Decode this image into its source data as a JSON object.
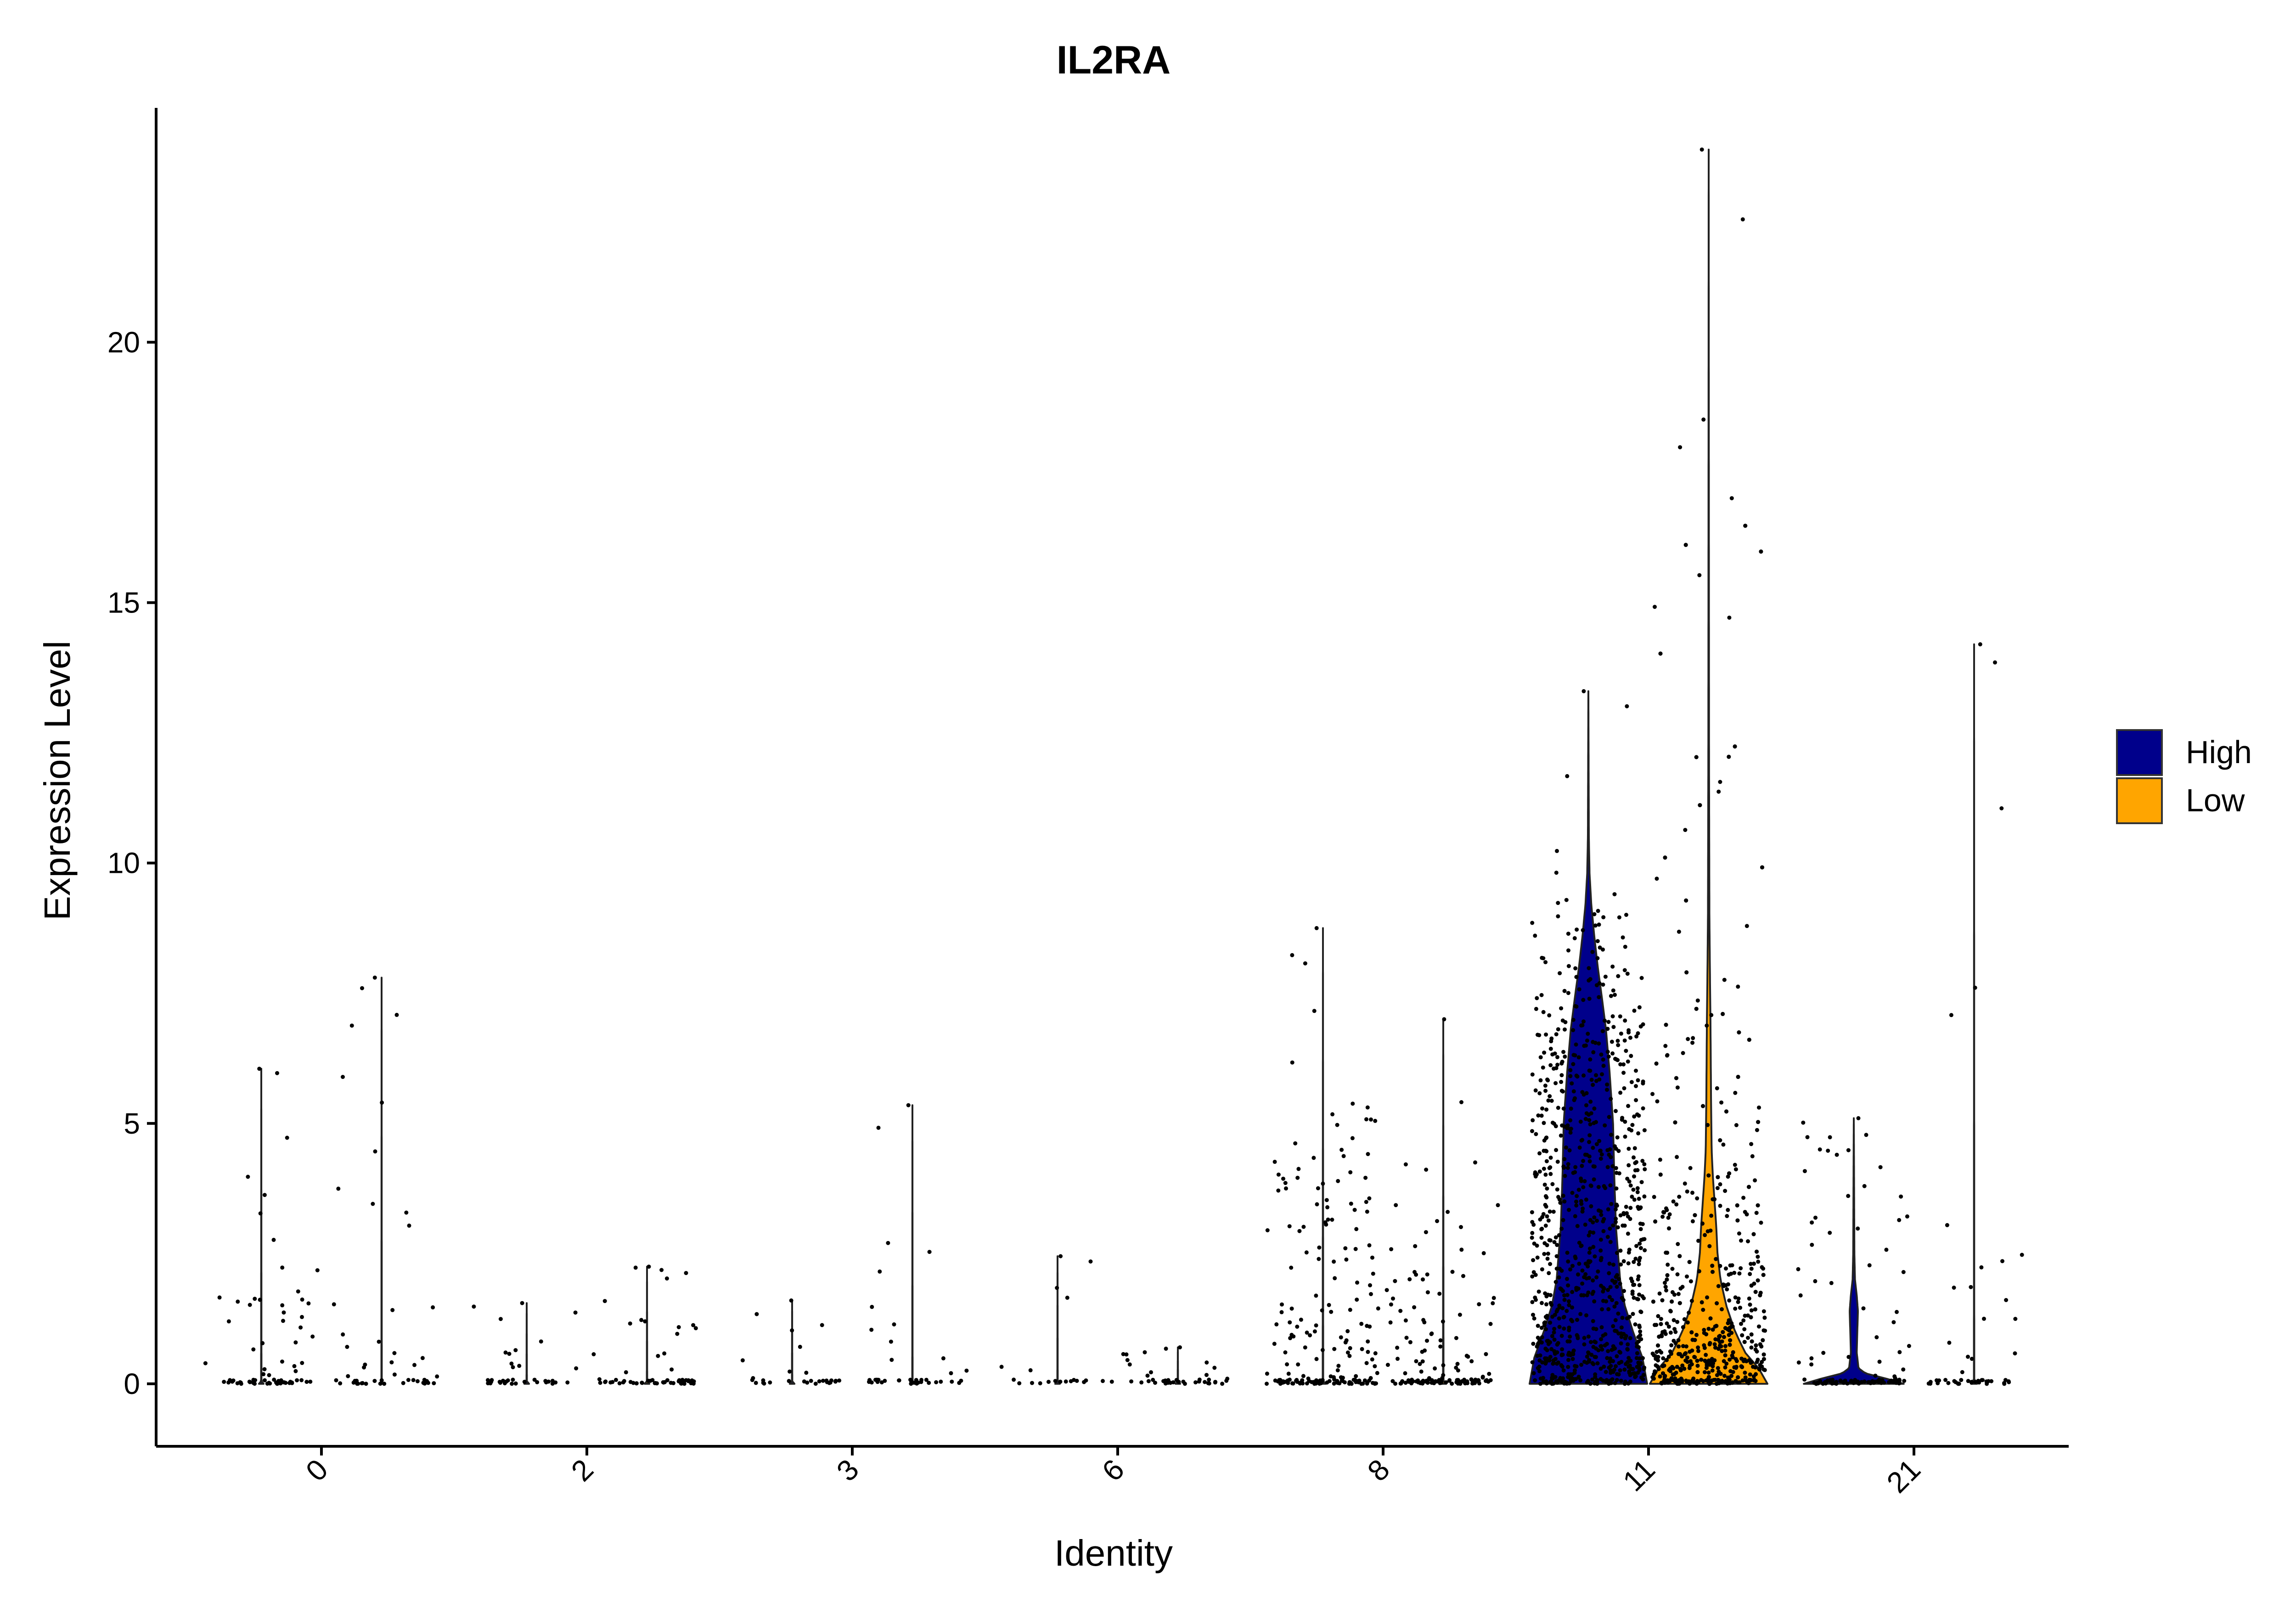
{
  "chart_data": {
    "type": "violin",
    "title": "IL2RA",
    "xlabel": "Identity",
    "ylabel": "Expression Level",
    "ylim": [
      -1.2,
      24.5
    ],
    "yticks": [
      0,
      5,
      10,
      15,
      20
    ],
    "categories": [
      "0",
      "2",
      "3",
      "6",
      "8",
      "11",
      "21"
    ],
    "legend": {
      "position": "right",
      "entries": [
        {
          "name": "High",
          "color": "#00008B"
        },
        {
          "name": "Low",
          "color": "#FFA500"
        }
      ]
    },
    "grid": false,
    "series": [
      {
        "name": "High",
        "color": "#00008B",
        "groups": [
          {
            "identity": "0",
            "max": 6.05,
            "n_points": 70,
            "nonzero_frac": 0.5,
            "typical_max": 3.3,
            "width_profile": [
              [
                0,
                0.04
              ],
              [
                0.05,
                0.003
              ],
              [
                6.05,
                0.0
              ]
            ]
          },
          {
            "identity": "2",
            "max": 1.55,
            "n_points": 35,
            "nonzero_frac": 0.35,
            "typical_max": 1.55,
            "width_profile": [
              [
                0,
                0.04
              ],
              [
                0.05,
                0.003
              ],
              [
                1.55,
                0.0
              ]
            ]
          },
          {
            "identity": "3",
            "max": 1.6,
            "n_points": 30,
            "nonzero_frac": 0.35,
            "typical_max": 1.6,
            "width_profile": [
              [
                0,
                0.04
              ],
              [
                0.05,
                0.003
              ],
              [
                1.6,
                0.0
              ]
            ]
          },
          {
            "identity": "6",
            "max": 2.45,
            "n_points": 20,
            "nonzero_frac": 0.35,
            "typical_max": 2.45,
            "width_profile": [
              [
                0,
                0.04
              ],
              [
                0.05,
                0.003
              ],
              [
                2.45,
                0.0
              ]
            ]
          },
          {
            "identity": "8",
            "max": 8.75,
            "n_points": 190,
            "nonzero_frac": 0.7,
            "typical_max": 5.4,
            "width_profile": [
              [
                0,
                0.05
              ],
              [
                0.05,
                0.004
              ],
              [
                8.75,
                0.0
              ]
            ]
          },
          {
            "identity": "11",
            "max": 13.3,
            "n_points": 900,
            "nonzero_frac": 0.95,
            "typical_max": 9.5,
            "width_profile": [
              [
                0,
                1.0
              ],
              [
                0.5,
                0.92
              ],
              [
                1.0,
                0.76
              ],
              [
                1.5,
                0.62
              ],
              [
                2.0,
                0.54
              ],
              [
                3.0,
                0.47
              ],
              [
                4.0,
                0.44
              ],
              [
                5.0,
                0.42
              ],
              [
                6.0,
                0.36
              ],
              [
                6.8,
                0.3
              ],
              [
                7.5,
                0.22
              ],
              [
                8.0,
                0.16
              ],
              [
                8.6,
                0.1
              ],
              [
                9.2,
                0.05
              ],
              [
                9.8,
                0.02
              ],
              [
                10.5,
                0.008
              ],
              [
                13.3,
                0.0
              ]
            ]
          },
          {
            "identity": "21",
            "max": 5.1,
            "n_points": 110,
            "nonzero_frac": 0.5,
            "typical_max": 5.1,
            "width_profile": [
              [
                0,
                0.85
              ],
              [
                0.1,
                0.55
              ],
              [
                0.2,
                0.2
              ],
              [
                0.3,
                0.08
              ],
              [
                0.6,
                0.05
              ],
              [
                1.0,
                0.06
              ],
              [
                1.4,
                0.07
              ],
              [
                1.7,
                0.05
              ],
              [
                2.0,
                0.02
              ],
              [
                2.5,
                0.01
              ],
              [
                5.1,
                0.0
              ]
            ]
          }
        ]
      },
      {
        "name": "Low",
        "color": "#FFA500",
        "groups": [
          {
            "identity": "0",
            "max": 7.8,
            "n_points": 45,
            "nonzero_frac": 0.5,
            "typical_max": 4.8,
            "width_profile": [
              [
                0,
                0.04
              ],
              [
                0.05,
                0.003
              ],
              [
                7.8,
                0.0
              ]
            ]
          },
          {
            "identity": "2",
            "max": 2.25,
            "n_points": 60,
            "nonzero_frac": 0.4,
            "typical_max": 2.25,
            "width_profile": [
              [
                0,
                0.04
              ],
              [
                0.05,
                0.003
              ],
              [
                2.25,
                0.0
              ]
            ]
          },
          {
            "identity": "3",
            "max": 5.35,
            "n_points": 35,
            "nonzero_frac": 0.3,
            "typical_max": 1.6,
            "width_profile": [
              [
                0,
                0.04
              ],
              [
                0.05,
                0.003
              ],
              [
                5.35,
                0.0
              ]
            ]
          },
          {
            "identity": "6",
            "max": 0.7,
            "n_points": 40,
            "nonzero_frac": 0.4,
            "typical_max": 0.7,
            "width_profile": [
              [
                0,
                0.04
              ],
              [
                0.05,
                0.003
              ],
              [
                0.7,
                0.0
              ]
            ]
          },
          {
            "identity": "8",
            "max": 7.0,
            "n_points": 140,
            "nonzero_frac": 0.6,
            "typical_max": 3.5,
            "width_profile": [
              [
                0,
                0.05
              ],
              [
                0.05,
                0.004
              ],
              [
                7.0,
                0.0
              ]
            ]
          },
          {
            "identity": "11",
            "max": 23.7,
            "n_points": 650,
            "nonzero_frac": 0.9,
            "typical_max": 16.7,
            "width_profile": [
              [
                0,
                1.0
              ],
              [
                0.3,
                0.85
              ],
              [
                0.6,
                0.62
              ],
              [
                1.0,
                0.45
              ],
              [
                1.5,
                0.3
              ],
              [
                2.0,
                0.2
              ],
              [
                2.5,
                0.15
              ],
              [
                3.0,
                0.13
              ],
              [
                3.5,
                0.1
              ],
              [
                4.0,
                0.07
              ],
              [
                4.5,
                0.05
              ],
              [
                5.5,
                0.04
              ],
              [
                7.0,
                0.03
              ],
              [
                8.0,
                0.02
              ],
              [
                9.0,
                0.012
              ],
              [
                12.0,
                0.006
              ],
              [
                15.0,
                0.004
              ],
              [
                23.7,
                0.0
              ]
            ]
          },
          {
            "identity": "21",
            "max": 14.2,
            "n_points": 45,
            "nonzero_frac": 0.4,
            "typical_max": 3.2,
            "width_profile": [
              [
                0,
                0.05
              ],
              [
                0.05,
                0.003
              ],
              [
                14.2,
                0.0
              ]
            ]
          }
        ]
      }
    ]
  }
}
